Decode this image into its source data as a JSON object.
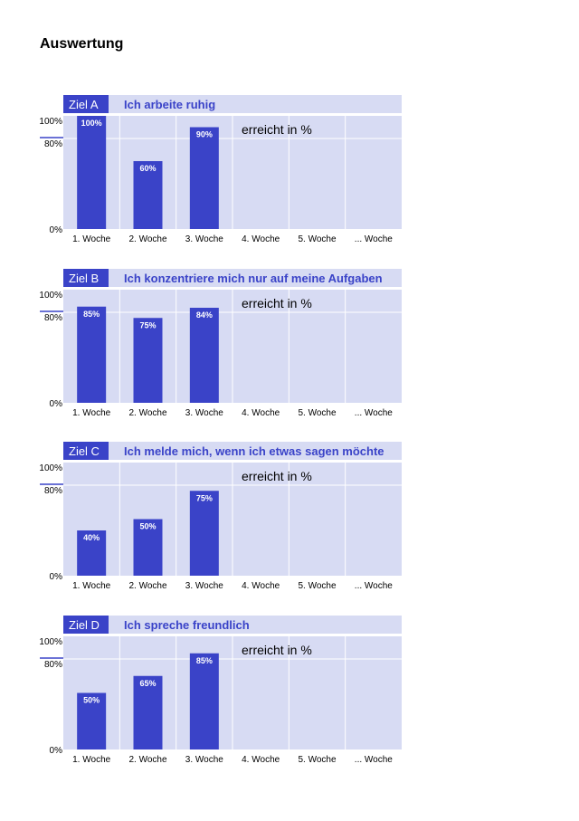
{
  "page": {
    "title": "Auswertung"
  },
  "colors": {
    "bar": "#3a43c8",
    "background": "#d7dbf3",
    "title_text": "#3a43c8",
    "label_box": "#3a43c8",
    "label_text": "#ffffff",
    "grid": "#ffffff"
  },
  "chart_data": [
    {
      "type": "bar",
      "goal_label": "Ziel A",
      "title": "Ich arbeite ruhig",
      "annotation": "erreicht in %",
      "categories": [
        "1. Woche",
        "2. Woche",
        "3. Woche",
        "4. Woche",
        "5. Woche",
        "... Woche"
      ],
      "values": [
        100,
        60,
        90,
        null,
        null,
        null
      ],
      "value_labels": [
        "100%",
        "60%",
        "90%",
        "",
        "",
        ""
      ],
      "y_tick_labels": [
        "100%",
        "80%",
        "0%"
      ],
      "y_ticks": [
        100,
        80,
        0
      ],
      "ylim": [
        0,
        100
      ],
      "grid": true
    },
    {
      "type": "bar",
      "goal_label": "Ziel B",
      "title": "Ich konzentriere mich nur auf meine Aufgaben",
      "annotation": "erreicht in %",
      "categories": [
        "1. Woche",
        "2. Woche",
        "3. Woche",
        "4. Woche",
        "5. Woche",
        "... Woche"
      ],
      "values": [
        85,
        75,
        84,
        null,
        null,
        null
      ],
      "value_labels": [
        "85%",
        "75%",
        "84%",
        "",
        "",
        ""
      ],
      "y_tick_labels": [
        "100%",
        "80%",
        "0%"
      ],
      "y_ticks": [
        100,
        80,
        0
      ],
      "ylim": [
        0,
        100
      ],
      "grid": true
    },
    {
      "type": "bar",
      "goal_label": "Ziel C",
      "title": "Ich melde mich, wenn ich etwas sagen möchte",
      "annotation": "erreicht in %",
      "categories": [
        "1. Woche",
        "2. Woche",
        "3. Woche",
        "4. Woche",
        "5. Woche",
        "... Woche"
      ],
      "values": [
        40,
        50,
        75,
        null,
        null,
        null
      ],
      "value_labels": [
        "40%",
        "50%",
        "75%",
        "",
        "",
        ""
      ],
      "y_tick_labels": [
        "100%",
        "80%",
        "0%"
      ],
      "y_ticks": [
        100,
        80,
        0
      ],
      "ylim": [
        0,
        100
      ],
      "grid": true
    },
    {
      "type": "bar",
      "goal_label": "Ziel D",
      "title": "Ich spreche freundlich",
      "annotation": "erreicht in %",
      "categories": [
        "1. Woche",
        "2. Woche",
        "3. Woche",
        "4. Woche",
        "5. Woche",
        "... Woche"
      ],
      "values": [
        50,
        65,
        85,
        null,
        null,
        null
      ],
      "value_labels": [
        "50%",
        "65%",
        "85%",
        "",
        "",
        ""
      ],
      "y_tick_labels": [
        "100%",
        "80%",
        "0%"
      ],
      "y_ticks": [
        100,
        80,
        0
      ],
      "ylim": [
        0,
        100
      ],
      "grid": true
    }
  ]
}
